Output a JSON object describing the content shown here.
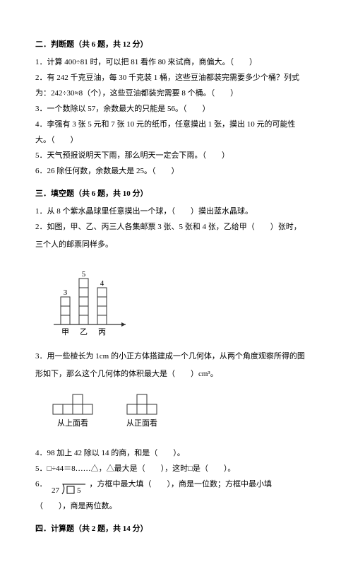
{
  "section2": {
    "title": "二．判断题（共 6 题，共 12 分）",
    "q1": "1．计算 400÷81 时，可以把 81 看作 80 来试商，商偏大。（　　）",
    "q2a": "2．有 242 千克豆油，每 30 千克装 1 桶，这些豆油都装完需要多少个桶？列式",
    "q2b": "为：242÷30≈8（个），这些豆油都装完需要 8 个桶。（　　）",
    "q3": "3．一个数除以 57，余数最大的只能是 56。（　　）",
    "q4a": "4．李强有 3 张 5 元和 7 张 10 元的纸币，任意摸出 1 张，摸出 10 元的可能性",
    "q4b": "大。（　　）",
    "q5": "5．天气预报说明天下雨，那么明天一定会下雨。（　　）",
    "q6": "6．26 除任何数，余数最大是 25。（　　）"
  },
  "section3": {
    "title": "三．填空题（共 6 题，共 10 分）",
    "q1": "1．从 8 个紫水晶球里任意摸出一个球，（　　）摸出蓝水晶球。",
    "q2a": "2．如图，甲、乙、丙三人各集邮票 3 张、5 张和 4 张，乙给甲（　　）张时，",
    "q2b": "三个人的邮票同样多。",
    "q3a": "3．用一些棱长为 1cm 的小正方体搭建成一个几何体，从两个角度观察所得的图",
    "q3b": "形如下，那么这个几何体的体积最大是（　　）cm³。",
    "q4": "4．98 加上 42 除以 14 的商，和是（　　）。",
    "q5": "5．□÷44＝8……△，△最大是（　　），这时□是（　　）。",
    "q6a": "6．",
    "q6b": "，方框中最大填（　　），商是一位数；方框中最小填",
    "q6c": "（　　），商是两位数。"
  },
  "section4": {
    "title": "四．计算题（共 2 题，共 14 分）"
  },
  "chart2": {
    "labels": [
      "甲",
      "乙",
      "丙"
    ],
    "values": [
      3,
      5,
      4
    ],
    "value_labels": [
      "3",
      "5",
      "4"
    ],
    "cell_size": 13,
    "bar_gap": 26,
    "stroke": "#303030",
    "text_color": "#000000",
    "axis_width": 1.2
  },
  "views": {
    "top_label": "从上面看",
    "front_label": "从正面看",
    "cell_size": 14,
    "stroke": "#303030",
    "top_cells": [
      [
        0,
        1
      ],
      [
        1,
        1
      ],
      [
        2,
        1
      ],
      [
        2,
        0
      ],
      [
        3,
        1
      ]
    ],
    "front_cells": [
      [
        0,
        1
      ],
      [
        1,
        0
      ],
      [
        1,
        1
      ],
      [
        2,
        1
      ]
    ]
  },
  "division": {
    "divisor": "27",
    "dividend_prefix": "",
    "dividend_suffix": "5",
    "box_char": "□",
    "stroke": "#000000"
  }
}
